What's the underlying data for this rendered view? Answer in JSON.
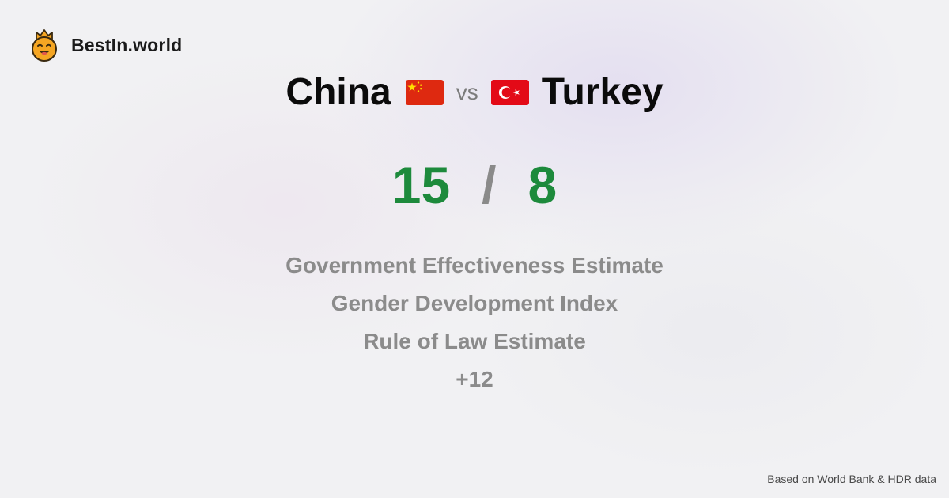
{
  "brand": {
    "name": "BestIn.world",
    "logo_icon": "crowned-smiley-icon",
    "logo_color": "#f5a623"
  },
  "comparison": {
    "left": {
      "country": "China",
      "flag_icon": "china-flag-icon",
      "score": "15"
    },
    "vs_label": "vs",
    "right": {
      "country": "Turkey",
      "flag_icon": "turkey-flag-icon",
      "score": "8"
    },
    "separator": "/"
  },
  "metrics": [
    "Government Effectiveness Estimate",
    "Gender Development Index",
    "Rule of Law Estimate"
  ],
  "more_count": "+12",
  "footer": {
    "source": "Based on World Bank & HDR data"
  },
  "colors": {
    "score": "#1d8a3c",
    "muted_text": "#8b8b8b",
    "china_red": "#de2910",
    "china_yellow": "#ffde00",
    "turkey_red": "#e30a17"
  }
}
